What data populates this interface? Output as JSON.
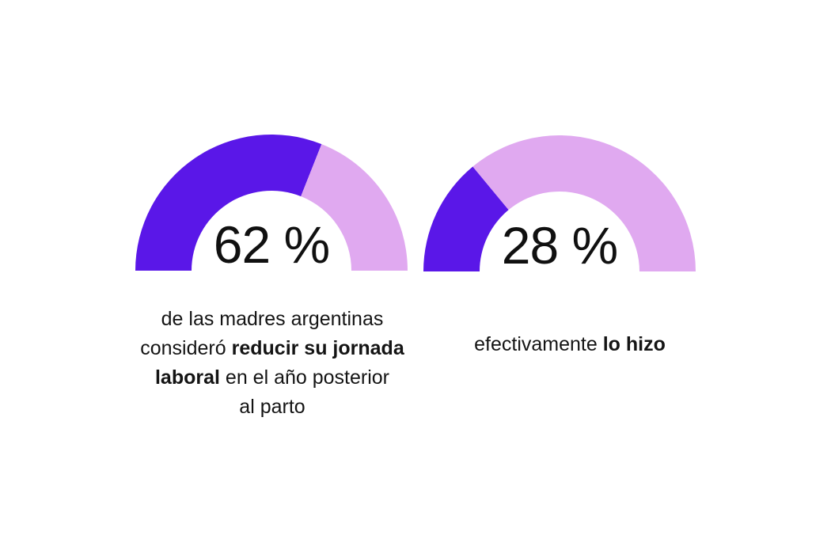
{
  "palette": {
    "filled": "#5a17e8",
    "remainder": "#e0a9f0",
    "number_text": "#101010",
    "caption_text": "#141414",
    "background": "#ffffff"
  },
  "chart_data": [
    {
      "type": "gauge",
      "value": 62,
      "max": 100,
      "unit": "%",
      "label": "62 %",
      "filled_color": "#5a17e8",
      "remainder_color": "#e0a9f0",
      "caption": "de las madres argentinas consideró reducir su jornada laboral en el año posterior al parto",
      "caption_lines": [
        [
          {
            "text": "de las madres argentinas",
            "bold": false
          }
        ],
        [
          {
            "text": "consideró ",
            "bold": false
          },
          {
            "text": "reducir su jornada",
            "bold": true
          }
        ],
        [
          {
            "text": "laboral",
            "bold": true
          },
          {
            "text": " en el año posterior",
            "bold": false
          }
        ],
        [
          {
            "text": "al parto",
            "bold": false
          }
        ]
      ]
    },
    {
      "type": "gauge",
      "value": 28,
      "max": 100,
      "unit": "%",
      "label": "28 %",
      "filled_color": "#5a17e8",
      "remainder_color": "#e0a9f0",
      "caption": "efectivamente lo hizo",
      "caption_lines": [
        [
          {
            "text": "efectivamente ",
            "bold": false
          },
          {
            "text": "lo hizo",
            "bold": true
          }
        ]
      ]
    }
  ]
}
